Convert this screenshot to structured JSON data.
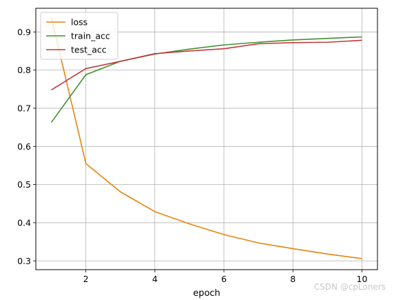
{
  "chart_data": {
    "type": "line",
    "title": "",
    "xlabel": "epoch",
    "ylabel": "",
    "x": [
      1,
      2,
      3,
      4,
      5,
      6,
      7,
      8,
      9,
      10
    ],
    "xticks": [
      2,
      4,
      6,
      8,
      10
    ],
    "yticks": [
      0.3,
      0.4,
      0.5,
      0.6,
      0.7,
      0.8,
      0.9
    ],
    "xlim": [
      0.55,
      10.45
    ],
    "ylim": [
      0.277,
      0.962
    ],
    "grid": true,
    "legend_position": "top-left",
    "series": [
      {
        "name": "loss",
        "color": "#e8820c",
        "values": [
          0.938,
          0.555,
          0.481,
          0.429,
          0.397,
          0.369,
          0.347,
          0.332,
          0.318,
          0.306
        ]
      },
      {
        "name": "train_acc",
        "color": "#3f9030",
        "values": [
          0.663,
          0.788,
          0.823,
          0.842,
          0.855,
          0.866,
          0.873,
          0.879,
          0.883,
          0.887
        ]
      },
      {
        "name": "test_acc",
        "color": "#c0373a",
        "values": [
          0.748,
          0.804,
          0.823,
          0.843,
          0.85,
          0.856,
          0.869,
          0.872,
          0.873,
          0.878
        ]
      }
    ]
  },
  "watermark": "CSDN @cpLoners"
}
